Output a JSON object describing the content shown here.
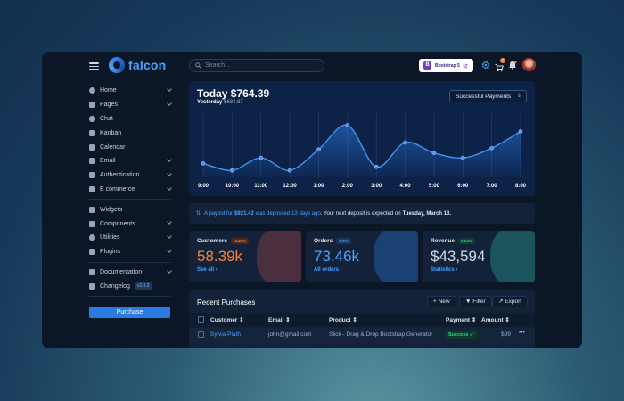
{
  "app": {
    "brand": "falcon",
    "colors": {
      "accent": "#2c7be5",
      "success": "#00d27a",
      "warning": "#f5803e",
      "bg": "#0b1727"
    }
  },
  "sidebar": {
    "items": [
      {
        "label": "Home",
        "icon": "pie-chart-icon",
        "chevron": true
      },
      {
        "label": "Pages",
        "icon": "flag-icon",
        "chevron": true
      },
      {
        "label": "Chat",
        "icon": "comments-icon",
        "chevron": false
      },
      {
        "label": "Kanban",
        "icon": "kanban-icon",
        "chevron": false
      },
      {
        "label": "Calendar",
        "icon": "calendar-icon",
        "chevron": false
      },
      {
        "label": "Email",
        "icon": "envelope-icon",
        "chevron": true
      },
      {
        "label": "Authentication",
        "icon": "lock-icon",
        "chevron": true
      },
      {
        "label": "E commerce",
        "icon": "cart-icon",
        "chevron": true
      }
    ],
    "items2": [
      {
        "label": "Widgets",
        "icon": "poll-icon",
        "chevron": false
      },
      {
        "label": "Components",
        "icon": "puzzle-icon",
        "chevron": true
      },
      {
        "label": "Utilities",
        "icon": "fire-icon",
        "chevron": true
      },
      {
        "label": "Plugins",
        "icon": "plug-icon",
        "chevron": true
      }
    ],
    "items3": [
      {
        "label": "Documentation",
        "icon": "book-icon",
        "chevron": true
      },
      {
        "label": "Changelog",
        "icon": "code-branch-icon",
        "badge": "v2.8.2"
      }
    ],
    "purchase_label": "Purchase"
  },
  "topbar": {
    "search_placeholder": "Search...",
    "bootstrap_label": "Bootstrap 5",
    "bootstrap_letter": "B",
    "cart_count": "1"
  },
  "chart_card": {
    "today": "Today $764.39",
    "yesterday_label": "Yesterday",
    "yesterday_value": "$684.87",
    "select_value": "Successful Payments"
  },
  "chart_data": {
    "type": "line",
    "x": [
      "9:00",
      "10:00",
      "11:00",
      "12:00",
      "1:00",
      "2:00",
      "3:00",
      "4:00",
      "5:00",
      "6:00",
      "7:00",
      "8:00"
    ],
    "values": [
      20,
      10,
      28,
      10,
      40,
      75,
      15,
      50,
      35,
      28,
      42,
      66
    ],
    "ylim": [
      0,
      100
    ],
    "grid": true
  },
  "alert": {
    "prefix": "A payout for",
    "amount": "$921.42",
    "middle": "was deposited",
    "when": "13 days ago",
    "suffix": ". Your next deposit is expected on",
    "date": "Tuesday, March 13."
  },
  "stats": [
    {
      "label": "Customers",
      "chip": "-0.23%",
      "value": "58.39k",
      "link": "See all ›"
    },
    {
      "label": "Orders",
      "chip": "0.0%",
      "value": "73.46k",
      "link": "All orders ›"
    },
    {
      "label": "Revenue",
      "chip": "9.54%",
      "value": "$43,594",
      "link": "Statistics ›"
    }
  ],
  "purchases": {
    "title": "Recent Purchases",
    "buttons": {
      "new": "New",
      "filter": "Filter",
      "export": "Export"
    },
    "columns": [
      "Customer",
      "Email",
      "Product",
      "Payment",
      "Amount"
    ],
    "rows": [
      {
        "customer": "Sylvia Plath",
        "email": "john@gmail.com",
        "product": "Slick - Drag & Drop Bootstrap Generator",
        "payment": "Success",
        "amount": "$99",
        "more": "•••"
      }
    ]
  }
}
